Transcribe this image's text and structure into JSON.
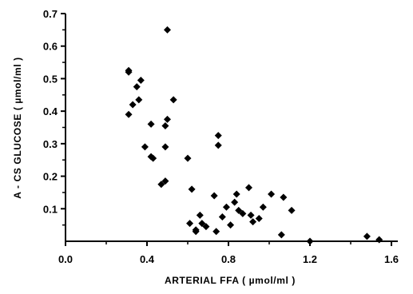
{
  "chart_data": {
    "type": "scatter",
    "title": "",
    "xlabel": "ARTERIAL  FFA  ( µmol/ml )",
    "ylabel": "A - CS  GLUCOSE  ( µmol/ml )",
    "xlim": [
      0.0,
      1.6
    ],
    "ylim": [
      0.0,
      0.7
    ],
    "x_ticks": [
      "0.0",
      "0.4",
      "0.8",
      "1.2",
      "1.6"
    ],
    "y_ticks": [
      "0.1",
      "0.2",
      "0.3",
      "0.4",
      "0.5",
      "0.6",
      "0.7"
    ],
    "x_tick_values": [
      0.0,
      0.4,
      0.8,
      1.2,
      1.6
    ],
    "y_tick_values": [
      0.1,
      0.2,
      0.3,
      0.4,
      0.5,
      0.6,
      0.7
    ],
    "grid": false,
    "legend": "none",
    "marker": "diamond",
    "marker_color": "#000000",
    "series": [
      {
        "points": [
          [
            0.31,
            0.525
          ],
          [
            0.31,
            0.52
          ],
          [
            0.35,
            0.475
          ],
          [
            0.37,
            0.495
          ],
          [
            0.33,
            0.42
          ],
          [
            0.31,
            0.39
          ],
          [
            0.36,
            0.435
          ],
          [
            0.42,
            0.36
          ],
          [
            0.39,
            0.29
          ],
          [
            0.42,
            0.26
          ],
          [
            0.43,
            0.255
          ],
          [
            0.47,
            0.175
          ],
          [
            0.49,
            0.185
          ],
          [
            0.49,
            0.29
          ],
          [
            0.49,
            0.355
          ],
          [
            0.5,
            0.375
          ],
          [
            0.5,
            0.65
          ],
          [
            0.53,
            0.435
          ],
          [
            0.6,
            0.255
          ],
          [
            0.62,
            0.16
          ],
          [
            0.61,
            0.055
          ],
          [
            0.64,
            0.035
          ],
          [
            0.64,
            0.03
          ],
          [
            0.66,
            0.08
          ],
          [
            0.67,
            0.055
          ],
          [
            0.69,
            0.045
          ],
          [
            0.73,
            0.14
          ],
          [
            0.74,
            0.03
          ],
          [
            0.75,
            0.325
          ],
          [
            0.75,
            0.295
          ],
          [
            0.77,
            0.075
          ],
          [
            0.79,
            0.105
          ],
          [
            0.81,
            0.05
          ],
          [
            0.83,
            0.12
          ],
          [
            0.84,
            0.145
          ],
          [
            0.85,
            0.095
          ],
          [
            0.87,
            0.085
          ],
          [
            0.9,
            0.165
          ],
          [
            0.91,
            0.08
          ],
          [
            0.92,
            0.06
          ],
          [
            0.95,
            0.07
          ],
          [
            0.97,
            0.105
          ],
          [
            1.01,
            0.145
          ],
          [
            1.06,
            0.02
          ],
          [
            1.07,
            0.135
          ],
          [
            1.11,
            0.095
          ],
          [
            1.2,
            0.0
          ],
          [
            1.48,
            0.015
          ],
          [
            1.54,
            0.005
          ]
        ]
      }
    ]
  }
}
